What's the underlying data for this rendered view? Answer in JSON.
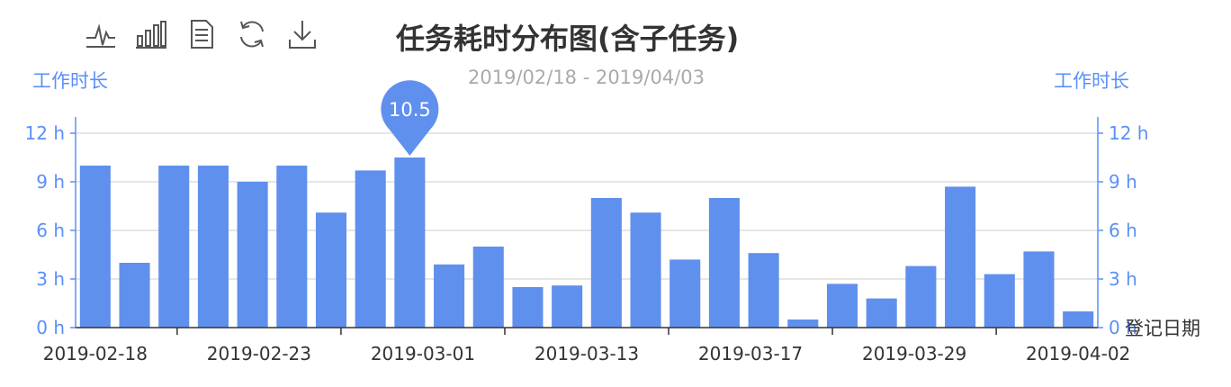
{
  "toolbar": {
    "icons": [
      "line-chart-icon",
      "bar-chart-icon",
      "data-view-icon",
      "restore-icon",
      "save-image-icon"
    ]
  },
  "colors": {
    "bar": "#6090ed",
    "axis": "#5b8ff9",
    "grid": "#cccccc",
    "title": "#333333",
    "subtitle": "#aaaaaa"
  },
  "chart_data": {
    "type": "bar",
    "title": "任务耗时分布图(含子任务)",
    "subtitle": "2019/02/18 - 2019/04/03",
    "ylabel_left": "工作时长",
    "ylabel_right": "工作时长",
    "xlabel": "登记日期",
    "ylim": [
      0,
      13
    ],
    "yticks": [
      "0 h",
      "3 h",
      "6 h",
      "9 h",
      "12 h"
    ],
    "ytick_values": [
      0,
      3,
      6,
      9,
      12
    ],
    "x_tick_labels": [
      "2019-02-18",
      "2019-02-23",
      "2019-03-01",
      "2019-03-13",
      "2019-03-17",
      "2019-03-29",
      "2019-04-02"
    ],
    "values": [
      10,
      4,
      10,
      10,
      9,
      10,
      7.1,
      9.7,
      10.5,
      3.9,
      5,
      2.5,
      2.6,
      8,
      7.1,
      4.2,
      8,
      4.6,
      0.5,
      2.7,
      1.8,
      3.8,
      8.7,
      3.3,
      4.7,
      1
    ],
    "highlight": {
      "label": "10.5",
      "index": 8
    },
    "grid": true
  }
}
